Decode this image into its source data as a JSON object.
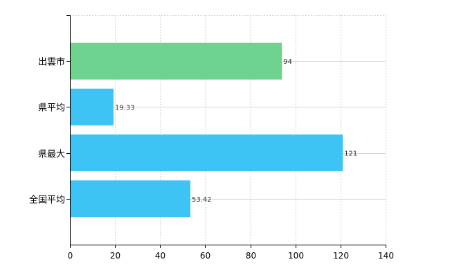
{
  "chart_data": {
    "type": "bar",
    "orientation": "horizontal",
    "categories": [
      "出雲市",
      "県平均",
      "県最大",
      "全国平均"
    ],
    "values": [
      94,
      19.33,
      121,
      53.42
    ],
    "value_labels": [
      "94",
      "19.33",
      "121",
      "53.42"
    ],
    "bar_colors": [
      "#6dd38e",
      "#3ec3f5",
      "#3ec3f5",
      "#3ec3f5"
    ],
    "xlim": [
      0,
      140
    ],
    "x_ticks": [
      0,
      20,
      40,
      60,
      80,
      100,
      120,
      140
    ],
    "grid": true,
    "legend": "none"
  }
}
